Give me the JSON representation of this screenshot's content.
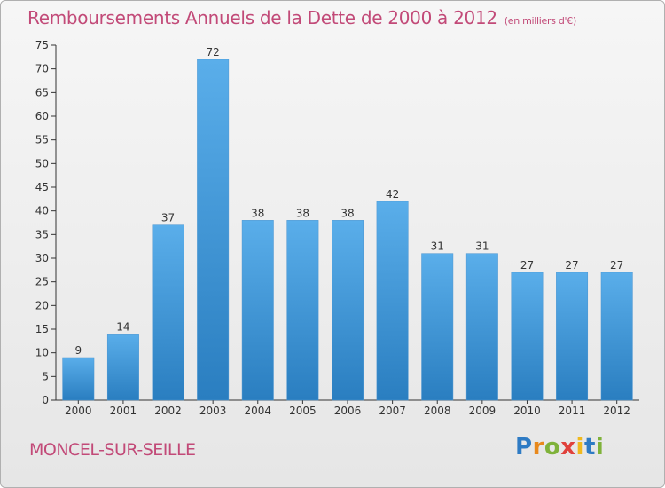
{
  "title": "Remboursements Annuels de la Dette de 2000 à 2012",
  "subtitle": "(en milliers d'€)",
  "commune": "MONCEL-SUR-SEILLE",
  "logo": {
    "text": "Proxiti",
    "letters": [
      "P",
      "r",
      "o",
      "x",
      "i",
      "t",
      "i"
    ],
    "colors": [
      "#2e7bc4",
      "#e8891d",
      "#7fb23a",
      "#e0413c",
      "#f0b91e",
      "#2e7bc4",
      "#7fb23a"
    ]
  },
  "colors": {
    "bar_top": "#5aaeea",
    "bar_bottom": "#2a7ec0",
    "title": "#c24a78"
  },
  "chart_data": {
    "type": "bar",
    "categories": [
      "2000",
      "2001",
      "2002",
      "2003",
      "2004",
      "2005",
      "2006",
      "2007",
      "2008",
      "2009",
      "2010",
      "2011",
      "2012"
    ],
    "values": [
      9,
      14,
      37,
      72,
      38,
      38,
      38,
      42,
      31,
      31,
      27,
      27,
      27
    ],
    "ylim": [
      0,
      75
    ],
    "yticks": [
      0,
      5,
      10,
      15,
      20,
      25,
      30,
      35,
      40,
      45,
      50,
      55,
      60,
      65,
      70,
      75
    ],
    "grid": false,
    "data_labels": true
  }
}
